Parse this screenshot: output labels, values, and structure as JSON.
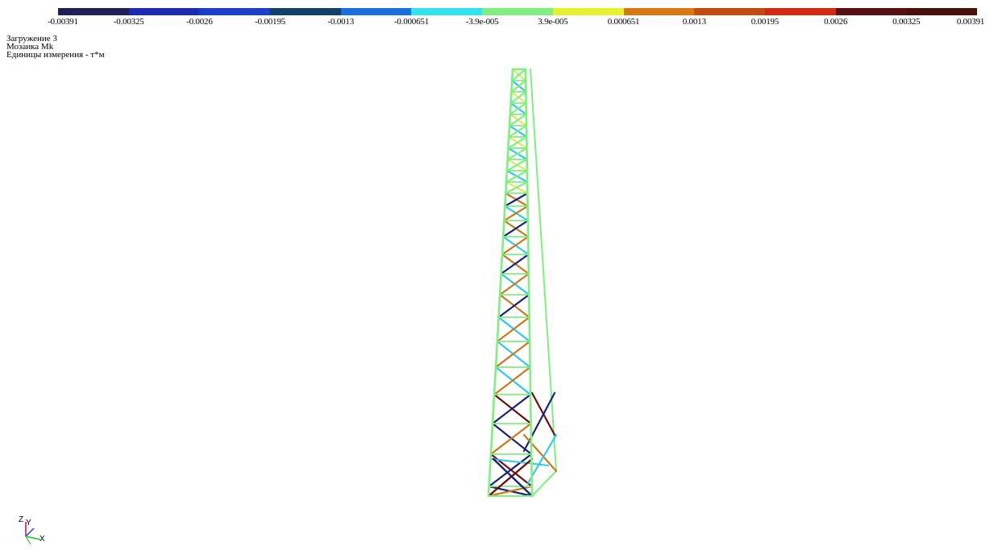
{
  "legend": {
    "colors": [
      "#1f1f5c",
      "#1b2bb4",
      "#1b3fcc",
      "#12406a",
      "#1a6fe0",
      "#2fe4f0",
      "#80ee80",
      "#e8f030",
      "#d8780e",
      "#c44a10",
      "#d42810",
      "#5a1010",
      "#4a1008"
    ],
    "ticks": [
      "-0.00391",
      "-0.00325",
      "-0.0026",
      "-0.00195",
      "-0.0013",
      "-0.000651",
      "-3.9e-005",
      "3.9e-005",
      "0.000651",
      "0.0013",
      "0.00195",
      "0.0026",
      "0.00325",
      "0.00391"
    ]
  },
  "info": {
    "load_case": "Загружение  3",
    "mosaic": "Мозаика Mk",
    "units": "Единицы измерения - т*м"
  },
  "axes": {
    "z": "Z",
    "y": "Y",
    "x": "X"
  },
  "structure": {
    "member_colors": {
      "green": "#80ee80",
      "yellow": "#dfe85a",
      "cyan": "#2fc8e8",
      "orange": "#c8781e",
      "navy": "#1a2278",
      "darkred": "#6a1010"
    }
  }
}
